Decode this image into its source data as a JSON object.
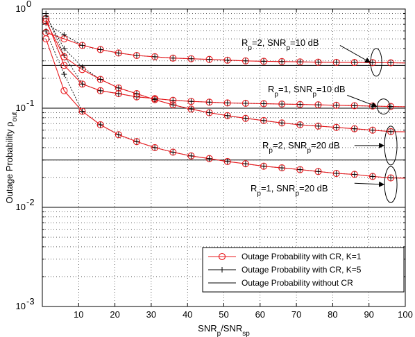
{
  "chart_data": {
    "type": "line",
    "xlabel": {
      "base": "SNR",
      "sub1": "p",
      "mid": "/SNR",
      "sub2": "sp"
    },
    "ylabel": {
      "base": "Outage Probability ρ",
      "sub": "out"
    },
    "xlim": [
      0,
      100
    ],
    "ylim": [
      0.001,
      1
    ],
    "y_scale": "log",
    "grid": true,
    "legend_position": "lower-right",
    "x_ticks": [
      "10",
      "20",
      "30",
      "40",
      "50",
      "60",
      "70",
      "80",
      "90",
      "100"
    ],
    "y_ticks": [
      {
        "base": "10",
        "exp": "0"
      },
      {
        "base": "10",
        "exp": "-1"
      },
      {
        "base": "10",
        "exp": "-2"
      },
      {
        "base": "10",
        "exp": "-3"
      }
    ],
    "x": [
      1,
      6,
      11,
      16,
      21,
      26,
      31,
      36,
      41,
      46,
      51,
      56,
      61,
      66,
      71,
      76,
      81,
      86,
      91,
      96
    ],
    "series": [
      {
        "key": "rp2_snr10",
        "values": [
          0.58,
          0.5,
          0.43,
          0.39,
          0.36,
          0.34,
          0.33,
          0.32,
          0.315,
          0.31,
          0.305,
          0.3,
          0.297,
          0.295,
          0.293,
          0.291,
          0.29,
          0.289,
          0.288,
          0.287
        ],
        "k5": [
          0.72,
          0.55,
          0.43,
          0.39,
          0.36,
          0.34,
          0.33,
          0.32,
          0.315,
          0.31,
          0.305,
          0.3,
          0.297,
          0.295,
          0.293,
          0.291,
          0.29,
          0.289,
          0.288,
          0.287
        ]
      },
      {
        "key": "rp1_snr10",
        "values": [
          0.8,
          0.27,
          0.175,
          0.15,
          0.14,
          0.13,
          0.125,
          0.12,
          0.117,
          0.115,
          0.113,
          0.112,
          0.111,
          0.11,
          0.109,
          0.108,
          0.107,
          0.106,
          0.105,
          0.104
        ],
        "k5": [
          0.9,
          0.34,
          0.175,
          0.15,
          0.14,
          0.13,
          0.125,
          0.12,
          0.117,
          0.115,
          0.113,
          0.112,
          0.111,
          0.11,
          0.109,
          0.108,
          0.107,
          0.106,
          0.105,
          0.104
        ]
      },
      {
        "key": "rp2_snr20",
        "values": [
          0.75,
          0.33,
          0.245,
          0.195,
          0.16,
          0.14,
          0.122,
          0.108,
          0.098,
          0.09,
          0.084,
          0.079,
          0.075,
          0.071,
          0.068,
          0.066,
          0.064,
          0.062,
          0.06,
          0.058
        ],
        "k5": [
          0.85,
          0.4,
          0.26,
          0.195,
          0.16,
          0.14,
          0.122,
          0.108,
          0.098,
          0.09,
          0.084,
          0.079,
          0.075,
          0.071,
          0.068,
          0.066,
          0.064,
          0.062,
          0.06,
          0.058
        ]
      },
      {
        "key": "rp1_snr20",
        "values": [
          0.5,
          0.15,
          0.093,
          0.068,
          0.054,
          0.046,
          0.04,
          0.036,
          0.033,
          0.031,
          0.029,
          0.0275,
          0.026,
          0.025,
          0.024,
          0.023,
          0.022,
          0.0215,
          0.0205,
          0.0198
        ],
        "k5": [
          0.6,
          0.22,
          0.093,
          0.068,
          0.054,
          0.046,
          0.04,
          0.036,
          0.033,
          0.031,
          0.029,
          0.0275,
          0.026,
          0.025,
          0.024,
          0.023,
          0.022,
          0.0215,
          0.0205,
          0.0198
        ]
      }
    ],
    "without_cr_levels": [
      0.27,
      0.1,
      0.03,
      0.01
    ],
    "annotations": [
      {
        "R": "R",
        "Rsub": "p",
        "Rval": "=2, SNR",
        "Ssub": "p",
        "Sval": "=10 dB",
        "ellipse_center": [
          92,
          0.29
        ],
        "arrow_from": [
          82,
          0.43
        ]
      },
      {
        "R": "R",
        "Rsub": "p",
        "Rval": "=1, SNR",
        "Ssub": "p",
        "Sval": "=10 dB",
        "ellipse_center": [
          94,
          0.104
        ],
        "arrow_from": [
          84,
          0.135
        ]
      },
      {
        "R": "R",
        "Rsub": "p",
        "Rval": "=2, SNR",
        "Ssub": "p",
        "Sval": "=20 dB",
        "ellipse_center": [
          96,
          0.042
        ],
        "arrow_from": [
          86,
          0.042
        ]
      },
      {
        "R": "R",
        "Rsub": "p",
        "Rval": "=1, SNR",
        "Ssub": "p",
        "Sval": "=20 dB",
        "ellipse_center": [
          96,
          0.017
        ],
        "arrow_from": [
          86,
          0.0175
        ]
      }
    ],
    "legend": [
      {
        "label": "Outage Probability with CR, K=1",
        "marker": "circle",
        "line_color": "#e8181c"
      },
      {
        "label": "Outage Probability with CR, K=5",
        "marker": "plus",
        "line_color": "#000000"
      },
      {
        "label": "Outage Probability without CR",
        "marker": "none",
        "line_color": "#000000"
      }
    ],
    "colors": {
      "k1": "#e8181c",
      "k5": "#000000",
      "no_cr": "#000000"
    }
  }
}
